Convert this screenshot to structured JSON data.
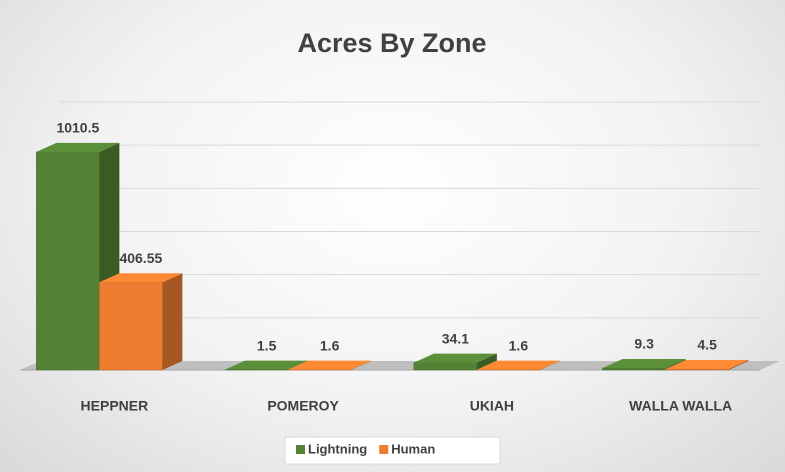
{
  "chart_data": {
    "type": "bar3d",
    "title": "Acres By Zone",
    "categories": [
      "HEPPNER",
      "POMEROY",
      "UKIAH",
      "WALLA WALLA"
    ],
    "series": [
      {
        "name": "Lightning",
        "color": "#548235",
        "values": [
          1010.5,
          1.5,
          34.1,
          9.3
        ]
      },
      {
        "name": "Human",
        "color": "#ed7d31",
        "values": [
          406.55,
          1.6,
          1.6,
          4.5
        ]
      }
    ],
    "ylim": [
      0,
      1200
    ],
    "yticks": [
      0,
      200,
      400,
      600,
      800,
      1000,
      1200
    ],
    "grid": true
  }
}
